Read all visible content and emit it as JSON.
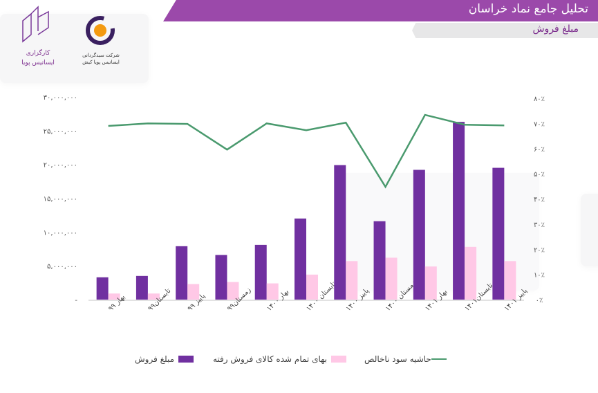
{
  "header": {
    "title": "تحلیل جامع نماد خراسان",
    "subtitle": "مبلغ فروش"
  },
  "logos": {
    "left": "کارگزاری ایساتیس پویا",
    "right": "شرکت سبدگردانی ایساتیس پویا کیش"
  },
  "colors": {
    "sales": "#7030a0",
    "cost": "#ffc8e6",
    "margin": "#4a9a6e",
    "header": "#9b49aa"
  },
  "chart_data": {
    "type": "bar+line",
    "categories": [
      "بهار ۹۹",
      "تابستان۹۹",
      "پاییز ۹۹",
      "زمستان۹۹",
      "بهار ۱۴۰۰",
      "تابستان ۱۴۰۰",
      "پاییز ۱۴۰۰",
      "زمستان ۱۴۰۰",
      "بهار ۱۴۰۱",
      "تابستان۱۴۰۱",
      "پاییز ۱۴۰۱"
    ],
    "series": [
      {
        "name": "مبلغ فروش",
        "type": "bar",
        "axis": "left",
        "values": [
          3300000,
          3500000,
          7900000,
          6600000,
          8100000,
          12000000,
          19900000,
          11600000,
          19200000,
          26300000,
          19500000
        ]
      },
      {
        "name": "بهای تمام شده کالای فروش رفته",
        "type": "bar",
        "axis": "left",
        "values": [
          900000,
          900000,
          2300000,
          2600000,
          2400000,
          3700000,
          5700000,
          6200000,
          4900000,
          7800000,
          5700000
        ]
      },
      {
        "name": "حاشیه سود ناخالص",
        "type": "line",
        "axis": "right",
        "values": [
          69,
          70,
          69.8,
          59.6,
          70,
          67.3,
          70.3,
          44.8,
          73.4,
          69.5,
          69.2
        ]
      }
    ],
    "left_axis": {
      "range": [
        0,
        30000000
      ],
      "ticks": [
        "-",
        "۵,۰۰۰,۰۰۰",
        "۱۰,۰۰۰,۰۰۰",
        "۱۵,۰۰۰,۰۰۰",
        "۲۰,۰۰۰,۰۰۰",
        "۲۵,۰۰۰,۰۰۰",
        "۳۰,۰۰۰,۰۰۰"
      ]
    },
    "right_axis": {
      "range": [
        0,
        80
      ],
      "ticks": [
        "۰٪",
        "۱۰٪",
        "۲۰٪",
        "۳۰٪",
        "۴۰٪",
        "۵۰٪",
        "۶۰٪",
        "۷۰٪",
        "۸۰٪"
      ]
    },
    "grid": false,
    "legend": "bottom"
  }
}
